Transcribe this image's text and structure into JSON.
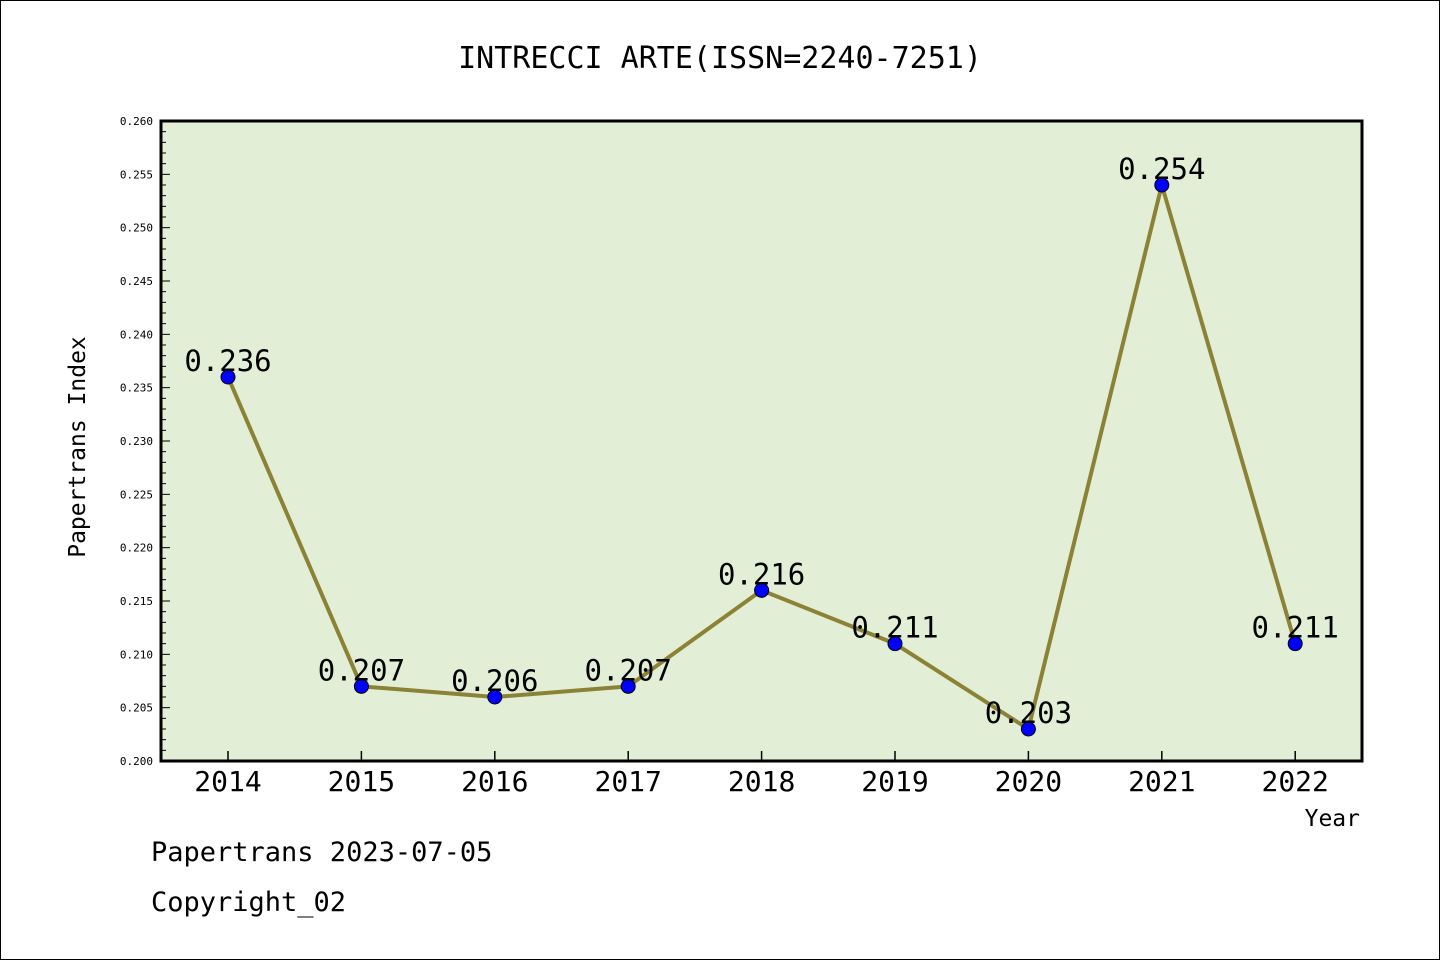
{
  "chart_data": {
    "type": "line",
    "title": "INTRECCI ARTE(ISSN=2240-7251)",
    "xlabel": "Year",
    "ylabel": "Papertrans Index",
    "categories": [
      "2014",
      "2015",
      "2016",
      "2017",
      "2018",
      "2019",
      "2020",
      "2021",
      "2022"
    ],
    "values": [
      0.236,
      0.207,
      0.206,
      0.207,
      0.216,
      0.211,
      0.203,
      0.254,
      0.211
    ],
    "value_labels": [
      "0.236",
      "0.207",
      "0.206",
      "0.207",
      "0.216",
      "0.211",
      "0.203",
      "0.254",
      "0.211"
    ],
    "ylim": [
      0.2,
      0.26
    ],
    "yticks": [
      "0.200",
      "0.205",
      "0.210",
      "0.215",
      "0.220",
      "0.225",
      "0.230",
      "0.235",
      "0.240",
      "0.245",
      "0.250",
      "0.255",
      "0.260"
    ],
    "grid": false,
    "colors": {
      "plot_background": "#e2efd6",
      "line": "#8b8236",
      "marker": "#0000ff"
    }
  },
  "footer": {
    "line1": "Papertrans 2023-07-05",
    "line2": "Copyright_02"
  }
}
